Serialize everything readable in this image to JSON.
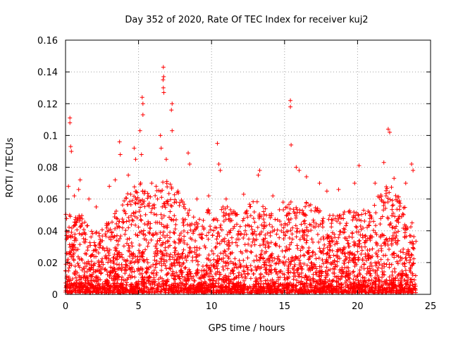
{
  "chart_data": {
    "type": "scatter",
    "title": "Day 352 of 2020, Rate Of TEC Index for receiver kuj2",
    "xlabel": "GPS time / hours",
    "ylabel": "ROTI / TECUs",
    "xlim": [
      0,
      25
    ],
    "ylim": [
      0,
      0.16
    ],
    "xticks": [
      0,
      5,
      10,
      15,
      20,
      25
    ],
    "yticks": [
      0,
      0.02,
      0.04,
      0.06,
      0.08,
      0.1,
      0.12,
      0.14,
      0.16
    ],
    "xtick_labels": [
      "0",
      "5",
      "10",
      "15",
      "20",
      "25"
    ],
    "ytick_labels": [
      "0",
      "0.02",
      "0.04",
      "0.06",
      "0.08",
      "0.1",
      "0.12",
      "0.14",
      "0.16"
    ],
    "grid": true,
    "marker": "plus",
    "color": "#ff0000",
    "series_points": [
      {
        "x": 0.3,
        "y": 0.111
      },
      {
        "x": 0.3,
        "y": 0.108
      },
      {
        "x": 0.35,
        "y": 0.093
      },
      {
        "x": 0.4,
        "y": 0.09
      },
      {
        "x": 0.2,
        "y": 0.068
      },
      {
        "x": 0.6,
        "y": 0.062
      },
      {
        "x": 1.0,
        "y": 0.072
      },
      {
        "x": 0.9,
        "y": 0.066
      },
      {
        "x": 1.6,
        "y": 0.06
      },
      {
        "x": 2.1,
        "y": 0.055
      },
      {
        "x": 3.0,
        "y": 0.068
      },
      {
        "x": 3.4,
        "y": 0.072
      },
      {
        "x": 3.7,
        "y": 0.096
      },
      {
        "x": 3.75,
        "y": 0.088
      },
      {
        "x": 4.3,
        "y": 0.075
      },
      {
        "x": 4.7,
        "y": 0.092
      },
      {
        "x": 4.8,
        "y": 0.085
      },
      {
        "x": 5.1,
        "y": 0.103
      },
      {
        "x": 5.25,
        "y": 0.124
      },
      {
        "x": 5.3,
        "y": 0.12
      },
      {
        "x": 5.3,
        "y": 0.113
      },
      {
        "x": 5.2,
        "y": 0.088
      },
      {
        "x": 5.9,
        "y": 0.07
      },
      {
        "x": 6.5,
        "y": 0.1
      },
      {
        "x": 6.55,
        "y": 0.092
      },
      {
        "x": 6.7,
        "y": 0.143
      },
      {
        "x": 6.72,
        "y": 0.137
      },
      {
        "x": 6.68,
        "y": 0.135
      },
      {
        "x": 6.7,
        "y": 0.13
      },
      {
        "x": 6.73,
        "y": 0.127
      },
      {
        "x": 7.3,
        "y": 0.12
      },
      {
        "x": 7.25,
        "y": 0.116
      },
      {
        "x": 7.3,
        "y": 0.103
      },
      {
        "x": 6.9,
        "y": 0.085
      },
      {
        "x": 7.7,
        "y": 0.065
      },
      {
        "x": 8.4,
        "y": 0.089
      },
      {
        "x": 8.5,
        "y": 0.082
      },
      {
        "x": 9.0,
        "y": 0.06
      },
      {
        "x": 9.8,
        "y": 0.062
      },
      {
        "x": 10.4,
        "y": 0.095
      },
      {
        "x": 10.5,
        "y": 0.082
      },
      {
        "x": 10.6,
        "y": 0.078
      },
      {
        "x": 11.0,
        "y": 0.06
      },
      {
        "x": 12.2,
        "y": 0.063
      },
      {
        "x": 13.2,
        "y": 0.075
      },
      {
        "x": 13.3,
        "y": 0.078
      },
      {
        "x": 14.2,
        "y": 0.062
      },
      {
        "x": 14.9,
        "y": 0.058
      },
      {
        "x": 15.4,
        "y": 0.122
      },
      {
        "x": 15.4,
        "y": 0.118
      },
      {
        "x": 15.45,
        "y": 0.094
      },
      {
        "x": 15.8,
        "y": 0.08
      },
      {
        "x": 16.0,
        "y": 0.078
      },
      {
        "x": 16.5,
        "y": 0.074
      },
      {
        "x": 17.4,
        "y": 0.07
      },
      {
        "x": 17.9,
        "y": 0.065
      },
      {
        "x": 18.7,
        "y": 0.066
      },
      {
        "x": 19.8,
        "y": 0.07
      },
      {
        "x": 20.1,
        "y": 0.081
      },
      {
        "x": 21.2,
        "y": 0.07
      },
      {
        "x": 21.8,
        "y": 0.083
      },
      {
        "x": 22.1,
        "y": 0.104
      },
      {
        "x": 22.2,
        "y": 0.102
      },
      {
        "x": 22.5,
        "y": 0.073
      },
      {
        "x": 23.3,
        "y": 0.07
      },
      {
        "x": 23.7,
        "y": 0.082
      },
      {
        "x": 23.8,
        "y": 0.078
      }
    ],
    "bulk_envelope_note_free": true,
    "bulk_profile": {
      "hours": [
        0,
        1,
        2,
        3,
        4,
        5,
        6,
        7,
        8,
        9,
        10,
        11,
        12,
        13,
        14,
        15,
        16,
        17,
        18,
        19,
        20,
        21,
        22,
        23,
        24
      ],
      "typical_max": [
        0.05,
        0.05,
        0.038,
        0.045,
        0.06,
        0.07,
        0.065,
        0.075,
        0.06,
        0.045,
        0.055,
        0.055,
        0.05,
        0.06,
        0.05,
        0.055,
        0.06,
        0.055,
        0.05,
        0.055,
        0.05,
        0.055,
        0.07,
        0.06,
        0.04
      ]
    }
  }
}
